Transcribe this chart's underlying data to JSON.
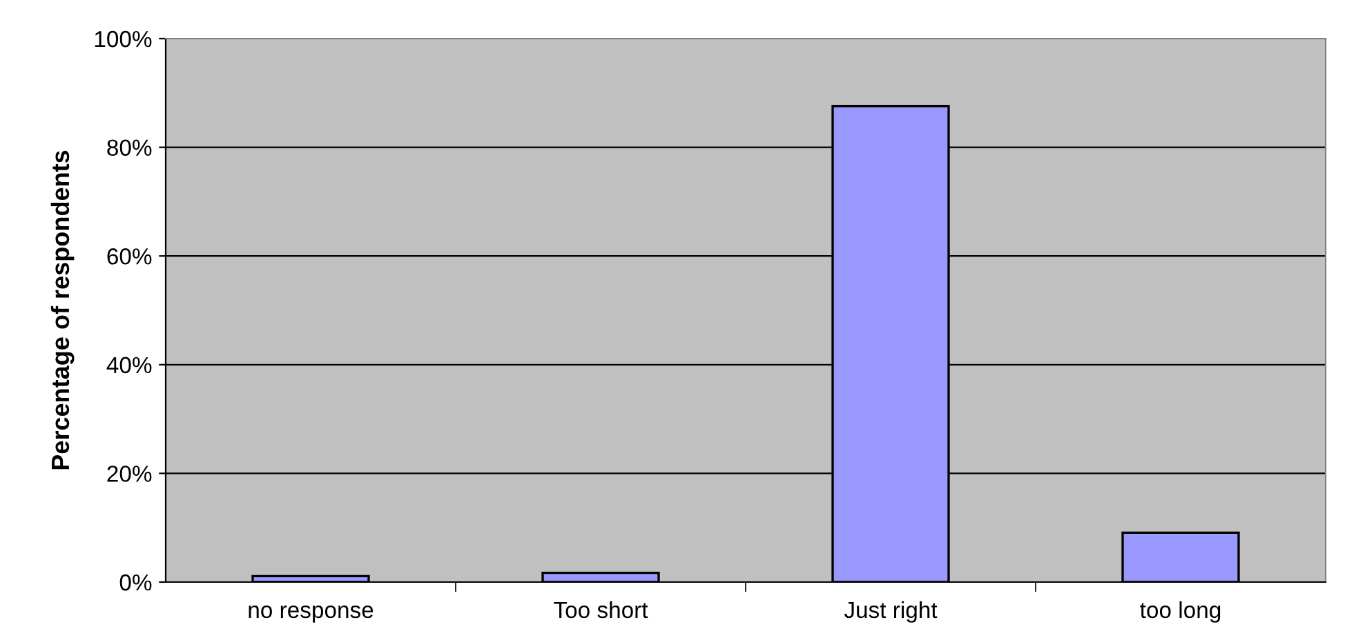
{
  "chart_data": {
    "type": "bar",
    "ylabel": "Percentage of respondents",
    "categories": [
      "no response",
      "Too short",
      "Just right",
      "too long"
    ],
    "values": [
      1.1,
      1.7,
      87.6,
      9.1
    ],
    "color": "#9999ff",
    "ylim": [
      0,
      100
    ],
    "yticks": [
      {
        "value": 0,
        "label": "0%"
      },
      {
        "value": 20,
        "label": "20%"
      },
      {
        "value": 40,
        "label": "40%"
      },
      {
        "value": 60,
        "label": "60%"
      },
      {
        "value": 80,
        "label": "80%"
      },
      {
        "value": 100,
        "label": "100%"
      }
    ],
    "grid": "y"
  }
}
